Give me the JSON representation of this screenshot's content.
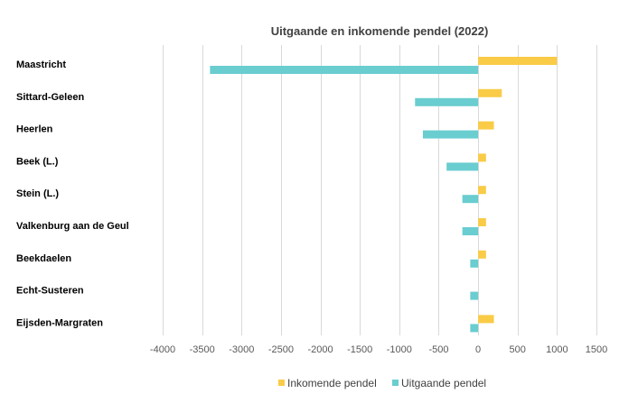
{
  "chart_data": {
    "type": "bar",
    "orientation": "horizontal",
    "title": "Uitgaande en inkomende pendel (2022)",
    "xlabel": "",
    "ylabel": "",
    "categories": [
      "Maastricht",
      "Sittard-Geleen",
      "Heerlen",
      "Beek (L.)",
      "Stein (L.)",
      "Valkenburg aan de Geul",
      "Beekdaelen",
      "Echt-Susteren",
      "Eijsden-Margraten"
    ],
    "series": [
      {
        "name": "Inkomende pendel",
        "color": "#f9cb47",
        "values": [
          1000,
          300,
          200,
          100,
          100,
          100,
          100,
          0,
          200
        ]
      },
      {
        "name": "Uitgaande pendel",
        "color": "#6acdd0",
        "values": [
          -3400,
          -800,
          -700,
          -400,
          -200,
          -200,
          -100,
          -100,
          -100
        ]
      }
    ],
    "xlim": [
      -4000,
      1500
    ],
    "xticks": [
      -4000,
      -3500,
      -3000,
      -2500,
      -2000,
      -1500,
      -1000,
      -500,
      0,
      500,
      1000,
      1500
    ],
    "xtick_labels": [
      "-4000",
      "-3500",
      "-3000",
      "-2500",
      "-2000",
      "-1500",
      "-1000",
      "-500",
      "0",
      "500",
      "1000",
      "1500"
    ],
    "grid": true,
    "legend_position": "bottom"
  }
}
